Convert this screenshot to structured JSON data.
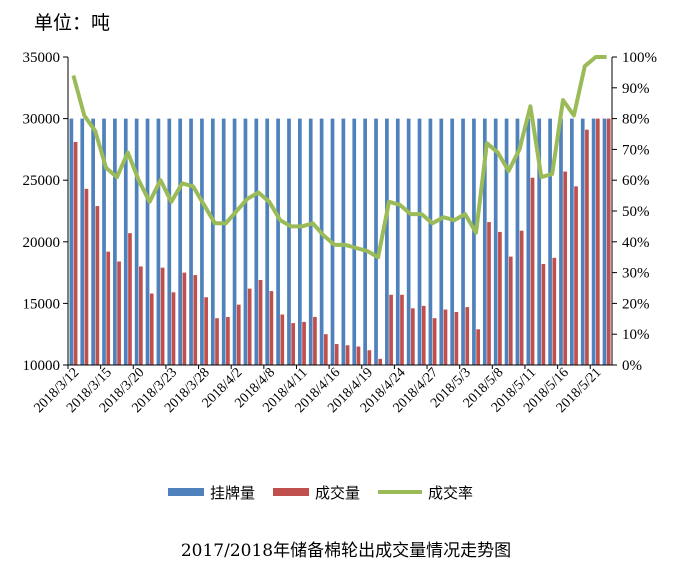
{
  "unit_label": "单位：吨",
  "caption": "2017/2018年储备棉轮出成交量情况走势图",
  "colors": {
    "listed": "#4F81BD",
    "traded": "#C0504D",
    "rate": "#9BBB59",
    "grid": "#000000"
  },
  "chart_data": {
    "type": "bar",
    "title": "",
    "y_left": {
      "min": 10000,
      "max": 35000,
      "step": 5000,
      "ticks": [
        "10000",
        "15000",
        "20000",
        "25000",
        "30000",
        "35000"
      ]
    },
    "y_right": {
      "min": 0,
      "max": 100,
      "step": 10,
      "ticks": [
        "0%",
        "10%",
        "20%",
        "30%",
        "40%",
        "50%",
        "60%",
        "70%",
        "80%",
        "90%",
        "100%"
      ]
    },
    "x_tick_labels": [
      {
        "index": 0,
        "label": "2018/3/12"
      },
      {
        "index": 3,
        "label": "2018/3/15"
      },
      {
        "index": 6,
        "label": "2018/3/20"
      },
      {
        "index": 9,
        "label": "2018/3/23"
      },
      {
        "index": 12,
        "label": "2018/3/28"
      },
      {
        "index": 15,
        "label": "2018/4/2"
      },
      {
        "index": 18,
        "label": "2018/4/8"
      },
      {
        "index": 21,
        "label": "2018/4/11"
      },
      {
        "index": 24,
        "label": "2018/4/16"
      },
      {
        "index": 27,
        "label": "2018/4/19"
      },
      {
        "index": 30,
        "label": "2018/4/24"
      },
      {
        "index": 33,
        "label": "2018/4/27"
      },
      {
        "index": 36,
        "label": "2018/5/3"
      },
      {
        "index": 39,
        "label": "2018/5/8"
      },
      {
        "index": 42,
        "label": "2018/5/11"
      },
      {
        "index": 45,
        "label": "2018/5/16"
      },
      {
        "index": 48,
        "label": "2018/5/21"
      }
    ],
    "legend": [
      "挂牌量",
      "成交量",
      "成交率"
    ],
    "legend_position": "bottom",
    "grid": false,
    "listed": [
      30000,
      30000,
      30000,
      30000,
      30000,
      30000,
      30000,
      30000,
      30000,
      30000,
      30000,
      30000,
      30000,
      30000,
      30000,
      30000,
      30000,
      30000,
      30000,
      30000,
      30000,
      30000,
      30000,
      30000,
      30000,
      30000,
      30000,
      30000,
      30000,
      30000,
      30000,
      30000,
      30000,
      30000,
      30000,
      30000,
      30000,
      30000,
      30000,
      30000,
      30000,
      30000,
      30000,
      30000,
      30000,
      30000,
      30000,
      30000,
      30000,
      30000
    ],
    "traded": [
      28100,
      24300,
      22900,
      19200,
      18400,
      20700,
      18000,
      15800,
      17900,
      15900,
      17500,
      17300,
      15500,
      13800,
      13900,
      14900,
      16200,
      16900,
      16000,
      14100,
      13400,
      13500,
      13900,
      12500,
      11700,
      11600,
      11500,
      11200,
      10500,
      15700,
      15700,
      14600,
      14800,
      13800,
      14500,
      14300,
      14700,
      12900,
      21600,
      20800,
      18800,
      20900,
      25200,
      18200,
      18700,
      25700,
      24500,
      29100,
      30000,
      30000
    ],
    "rate": [
      94,
      81,
      76,
      64,
      61,
      69,
      60,
      53,
      60,
      53,
      59,
      58,
      52,
      46,
      46,
      50,
      54,
      56,
      53,
      47,
      45,
      45,
      46,
      42,
      39,
      39,
      38,
      37,
      35,
      53,
      52,
      49,
      49,
      46,
      48,
      47,
      49,
      43,
      72,
      69,
      63,
      70,
      84,
      61,
      62,
      86,
      81,
      97,
      100,
      100
    ]
  },
  "legend_labels": {
    "listed": "挂牌量",
    "traded": "成交量",
    "rate": "成交率"
  }
}
